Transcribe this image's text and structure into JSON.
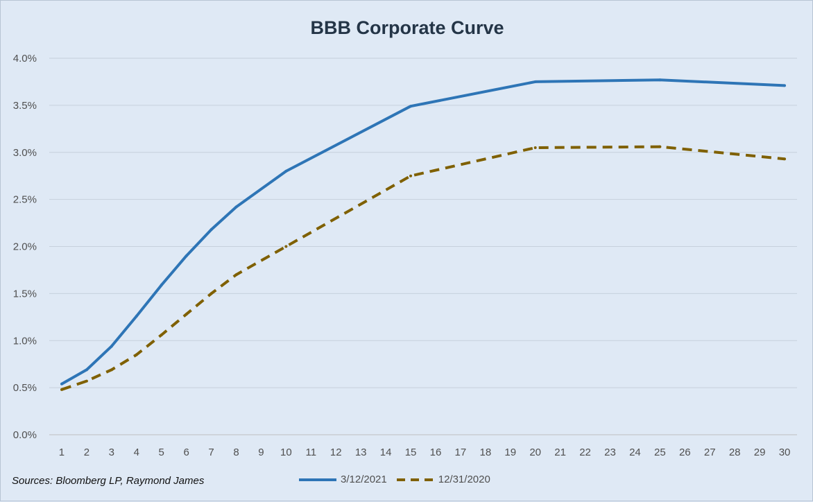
{
  "chart_data": {
    "type": "line",
    "title": "BBB Corporate Curve",
    "xlabel": "",
    "ylabel": "",
    "x": [
      1,
      2,
      3,
      4,
      5,
      6,
      7,
      8,
      9,
      10,
      11,
      12,
      13,
      14,
      15,
      16,
      17,
      18,
      19,
      20,
      21,
      22,
      23,
      24,
      25,
      26,
      27,
      28,
      29,
      30
    ],
    "x_tick_labels": [
      "1",
      "2",
      "3",
      "4",
      "5",
      "6",
      "7",
      "8",
      "9",
      "10",
      "11",
      "12",
      "13",
      "14",
      "15",
      "16",
      "17",
      "18",
      "19",
      "20",
      "21",
      "22",
      "23",
      "24",
      "25",
      "26",
      "27",
      "28",
      "29",
      "30"
    ],
    "y_tick_labels": [
      "0.0%",
      "0.5%",
      "1.0%",
      "1.5%",
      "2.0%",
      "2.5%",
      "3.0%",
      "3.5%",
      "4.0%"
    ],
    "ylim": [
      0,
      4.0
    ],
    "grid": "horizontal",
    "legend_position": "bottom",
    "series": [
      {
        "name": "3/12/2021",
        "color": "#2e75b6",
        "style": "solid",
        "x": [
          1,
          2,
          3,
          4,
          5,
          6,
          7,
          8,
          10,
          15,
          20,
          25,
          30
        ],
        "values": [
          0.54,
          0.69,
          0.94,
          1.26,
          1.59,
          1.9,
          2.18,
          2.42,
          2.8,
          3.49,
          3.75,
          3.77,
          3.71
        ]
      },
      {
        "name": "12/31/2020",
        "color": "#7f6000",
        "style": "dashed",
        "x": [
          1,
          2,
          3,
          4,
          5,
          6,
          7,
          8,
          10,
          15,
          20,
          25,
          30
        ],
        "values": [
          0.48,
          0.57,
          0.69,
          0.85,
          1.06,
          1.28,
          1.5,
          1.7,
          2.0,
          2.75,
          3.05,
          3.06,
          2.93
        ]
      }
    ]
  },
  "footer": {
    "source": "Sources: Bloomberg LP, Raymond James"
  }
}
